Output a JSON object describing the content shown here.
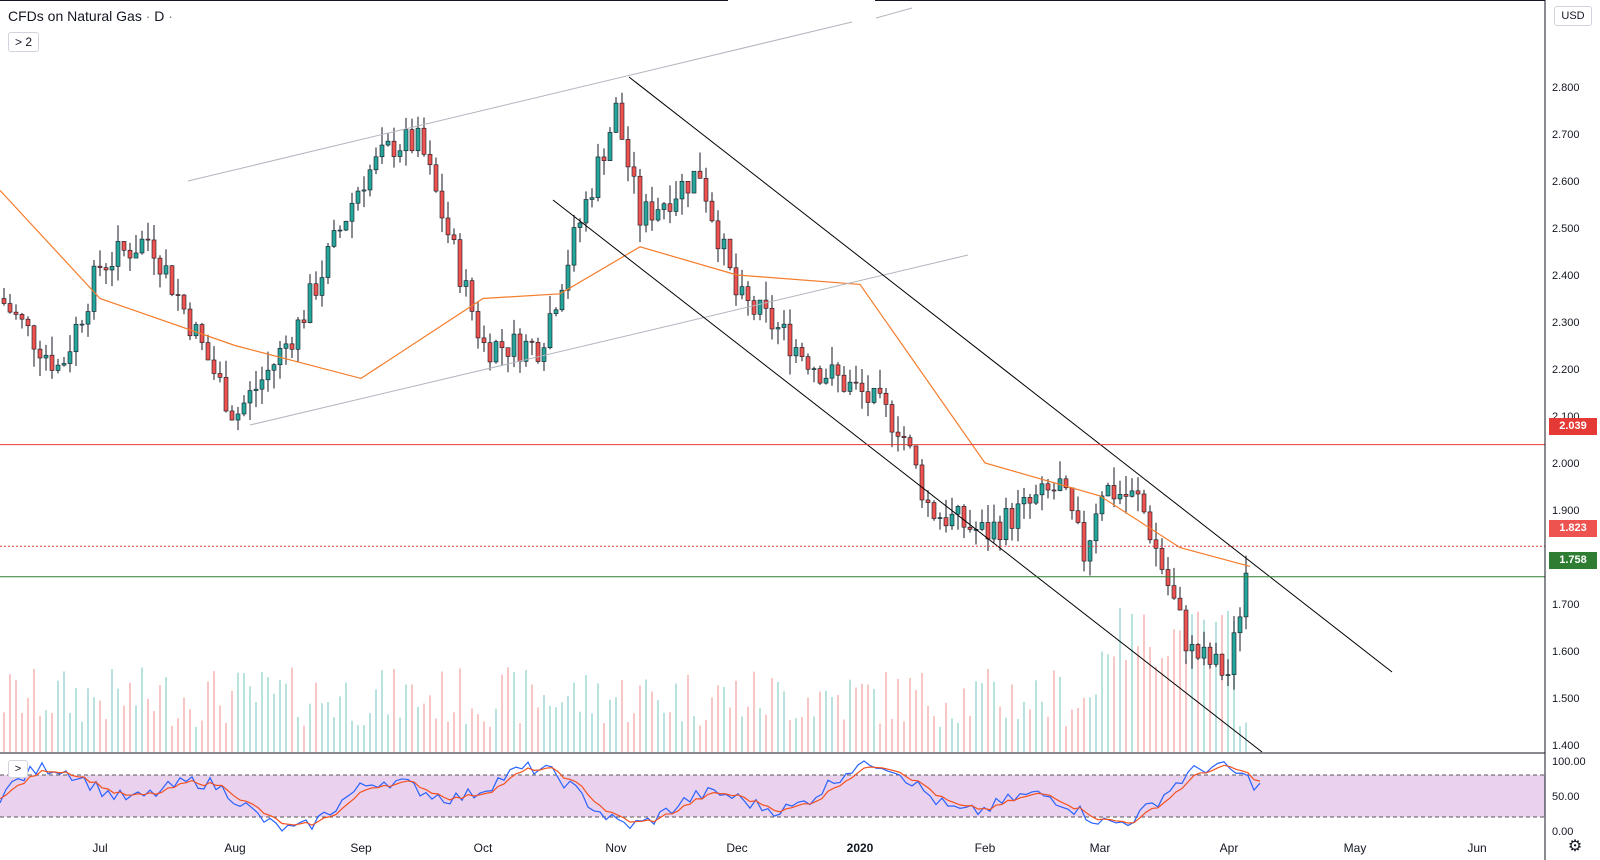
{
  "header": {
    "title": "CFDs on Natural Gas",
    "sep": "·",
    "interval": "D",
    "collapse_label": "> 2"
  },
  "currency": "USD",
  "oscillator_toggle": ">",
  "settings_icon": "gear-icon",
  "colors": {
    "up": "#26a69a",
    "down": "#ef5350",
    "ma": "#f57c2b",
    "support": "#2e7d32",
    "resistance": "#e53935",
    "rsi_band": "#e1bee7",
    "k_line": "#2962ff",
    "d_line": "#f4511e",
    "trend": "#000000",
    "channel": "#b2b5be"
  },
  "levels": {
    "resistance": "2.039",
    "last": "1.823",
    "support": "1.758"
  },
  "chart_data": {
    "type": "candlestick",
    "title": "CFDs on Natural Gas · D",
    "price_axis": {
      "ticks": [
        "1.400",
        "1.500",
        "1.600",
        "1.700",
        "1.800",
        "1.900",
        "2.000",
        "2.100",
        "2.200",
        "2.300",
        "2.400",
        "2.500",
        "2.600",
        "2.700",
        "2.800"
      ],
      "range": [
        1.35,
        2.95
      ]
    },
    "time_axis": {
      "ticks": [
        "Jul",
        "Aug",
        "Sep",
        "Oct",
        "Nov",
        "Dec",
        "2020",
        "Feb",
        "Mar",
        "Apr",
        "May",
        "Jun"
      ]
    },
    "horizontal_lines": [
      {
        "value": 2.039,
        "color": "red",
        "label": "2.039"
      },
      {
        "value": 1.823,
        "color": "red",
        "style": "dotted",
        "label": "1.823"
      },
      {
        "value": 1.758,
        "color": "green",
        "label": "1.758"
      }
    ],
    "key_prices": [
      {
        "date": "Jun",
        "close": 2.35
      },
      {
        "date": "Jul",
        "close": 2.42
      },
      {
        "date": "Aug",
        "close": 2.1
      },
      {
        "date": "Sep",
        "close": 2.6
      },
      {
        "date": "Oct",
        "close": 2.25
      },
      {
        "date": "Nov",
        "close": 2.75
      },
      {
        "date": "Dec",
        "close": 2.35
      },
      {
        "date": "2020",
        "close": 2.15
      },
      {
        "date": "Feb",
        "close": 1.85
      },
      {
        "date": "Mar",
        "close": 1.95
      },
      {
        "date": "Apr",
        "close": 1.55
      },
      {
        "date": "Apr",
        "close": 1.82
      }
    ],
    "moving_average": "orange line: 2.58 (Jun) → 2.35 (Jul) → 2.18 (Sep) → 2.35 (Oct) → 2.43 (Nov) → 2.40 (Dec) → 2.00 (Feb) → 1.78 (Apr)",
    "stochastic": {
      "axis_ticks": [
        "100.00",
        "50.00",
        "0.00"
      ],
      "band": [
        20,
        80
      ]
    }
  }
}
